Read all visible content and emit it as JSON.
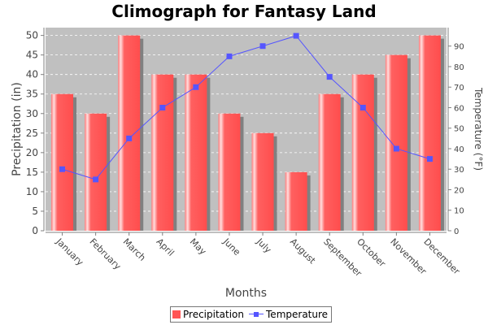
{
  "chart_data": {
    "type": "bar",
    "title": "Climograph for Fantasy Land",
    "xlabel": "Months",
    "ylabel": "Precipitation (in)",
    "y2label": "Temperature (°F)",
    "categories": [
      "January",
      "February",
      "March",
      "April",
      "May",
      "June",
      "July",
      "August",
      "September",
      "October",
      "November",
      "December"
    ],
    "ylim": [
      0,
      52
    ],
    "yticks": [
      0,
      5,
      10,
      15,
      20,
      25,
      30,
      35,
      40,
      45,
      50
    ],
    "y2lim": [
      0,
      99
    ],
    "y2ticks": [
      0,
      10,
      20,
      30,
      40,
      50,
      60,
      70,
      80,
      90
    ],
    "grid": true,
    "legend_position": "bottom",
    "series": [
      {
        "name": "Precipitation",
        "type": "bar",
        "axis": "left",
        "color": "#ff5555",
        "values": [
          35,
          30,
          50,
          40,
          40,
          30,
          25,
          15,
          35,
          40,
          45,
          50
        ]
      },
      {
        "name": "Temperature",
        "type": "line",
        "axis": "right",
        "color": "#5555ff",
        "values": [
          30,
          25,
          45,
          60,
          70,
          85,
          90,
          95,
          75,
          60,
          40,
          35
        ]
      }
    ],
    "colors": {
      "plot_background": "#c0c0c0",
      "gridline": "#ffffff",
      "bar_shadow": "#808080"
    }
  }
}
